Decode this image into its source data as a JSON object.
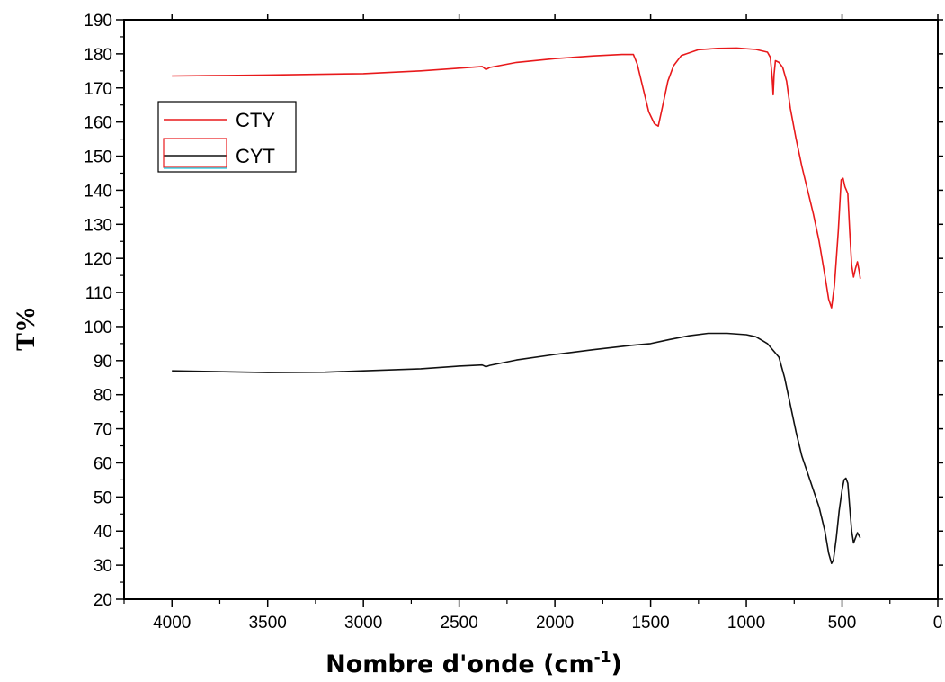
{
  "chart_data": {
    "type": "line",
    "title": "",
    "xlabel": "Nombre d'onde (cm",
    "xlabel_sup": "-1",
    "xlabel_close": ")",
    "ylabel": "T%",
    "xlim": [
      4250,
      0
    ],
    "ylim": [
      20,
      190
    ],
    "x_ticks": [
      4000,
      3500,
      3000,
      2500,
      2000,
      1500,
      1000,
      500,
      0
    ],
    "y_ticks": [
      20,
      30,
      40,
      50,
      60,
      70,
      80,
      90,
      100,
      110,
      120,
      130,
      140,
      150,
      160,
      170,
      180,
      190
    ],
    "grid": false,
    "legend_position": "upper-left",
    "series": [
      {
        "name": "CTY",
        "color": "#e8191b",
        "points": [
          [
            4000,
            173.5
          ],
          [
            3800,
            173.6
          ],
          [
            3500,
            173.8
          ],
          [
            3000,
            174.2
          ],
          [
            2700,
            175
          ],
          [
            2500,
            175.8
          ],
          [
            2380,
            176.3
          ],
          [
            2360,
            175.4
          ],
          [
            2340,
            176
          ],
          [
            2200,
            177.5
          ],
          [
            2000,
            178.6
          ],
          [
            1800,
            179.4
          ],
          [
            1650,
            179.8
          ],
          [
            1590,
            179.8
          ],
          [
            1570,
            177
          ],
          [
            1540,
            170
          ],
          [
            1510,
            163
          ],
          [
            1480,
            159.5
          ],
          [
            1460,
            158.8
          ],
          [
            1440,
            164
          ],
          [
            1410,
            172
          ],
          [
            1380,
            176.5
          ],
          [
            1340,
            179.5
          ],
          [
            1250,
            181.2
          ],
          [
            1150,
            181.6
          ],
          [
            1050,
            181.7
          ],
          [
            950,
            181.3
          ],
          [
            890,
            180.5
          ],
          [
            875,
            179
          ],
          [
            865,
            173
          ],
          [
            860,
            168
          ],
          [
            855,
            174
          ],
          [
            848,
            178
          ],
          [
            830,
            177.5
          ],
          [
            810,
            176
          ],
          [
            790,
            172
          ],
          [
            770,
            164
          ],
          [
            740,
            155
          ],
          [
            710,
            147
          ],
          [
            680,
            140
          ],
          [
            650,
            133
          ],
          [
            620,
            125
          ],
          [
            590,
            115
          ],
          [
            570,
            108
          ],
          [
            555,
            105.5
          ],
          [
            540,
            112
          ],
          [
            520,
            128
          ],
          [
            505,
            143
          ],
          [
            495,
            143.5
          ],
          [
            485,
            141
          ],
          [
            470,
            139
          ],
          [
            460,
            128
          ],
          [
            450,
            118
          ],
          [
            440,
            114.5
          ],
          [
            430,
            117
          ],
          [
            420,
            119
          ],
          [
            410,
            116
          ],
          [
            405,
            114
          ]
        ]
      },
      {
        "name": "CYT",
        "color": "#111111",
        "points": [
          [
            4000,
            87
          ],
          [
            3800,
            86.8
          ],
          [
            3500,
            86.5
          ],
          [
            3200,
            86.6
          ],
          [
            3000,
            87
          ],
          [
            2700,
            87.6
          ],
          [
            2500,
            88.4
          ],
          [
            2380,
            88.7
          ],
          [
            2360,
            88.2
          ],
          [
            2340,
            88.6
          ],
          [
            2200,
            90.2
          ],
          [
            2000,
            91.8
          ],
          [
            1800,
            93.2
          ],
          [
            1600,
            94.5
          ],
          [
            1500,
            95
          ],
          [
            1400,
            96.2
          ],
          [
            1300,
            97.3
          ],
          [
            1200,
            98
          ],
          [
            1100,
            98
          ],
          [
            1000,
            97.6
          ],
          [
            950,
            97
          ],
          [
            920,
            96
          ],
          [
            890,
            95
          ],
          [
            860,
            93
          ],
          [
            830,
            91
          ],
          [
            800,
            85
          ],
          [
            770,
            77
          ],
          [
            740,
            69
          ],
          [
            710,
            62
          ],
          [
            680,
            57
          ],
          [
            650,
            52
          ],
          [
            620,
            47
          ],
          [
            590,
            40
          ],
          [
            570,
            33.5
          ],
          [
            555,
            30.5
          ],
          [
            545,
            31.5
          ],
          [
            530,
            38
          ],
          [
            515,
            46
          ],
          [
            500,
            52
          ],
          [
            490,
            55
          ],
          [
            480,
            55.5
          ],
          [
            470,
            54
          ],
          [
            460,
            47
          ],
          [
            450,
            40
          ],
          [
            440,
            36.5
          ],
          [
            430,
            38
          ],
          [
            420,
            39.5
          ],
          [
            410,
            38.5
          ],
          [
            405,
            38
          ]
        ]
      }
    ]
  },
  "legend": {
    "entries": [
      {
        "name": "CTY",
        "color": "#e8191b"
      },
      {
        "name": "CYT",
        "color": "#111111"
      }
    ]
  }
}
